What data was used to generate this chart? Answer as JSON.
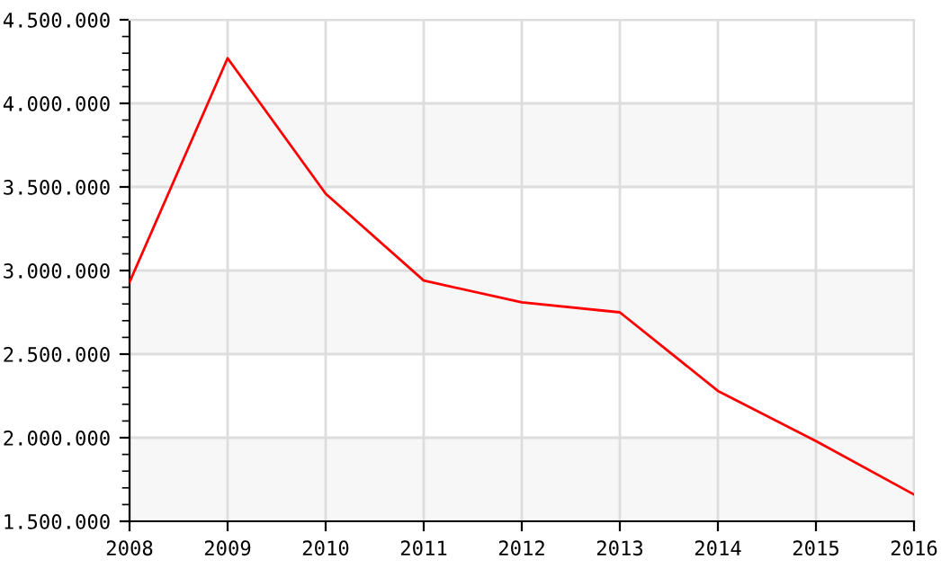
{
  "chart_data": {
    "type": "line",
    "x": [
      2008,
      2009,
      2010,
      2011,
      2012,
      2013,
      2014,
      2015,
      2016
    ],
    "series": [
      {
        "color": "#ff0000",
        "values": [
          2930000,
          4270000,
          3460000,
          2940000,
          2810000,
          2750000,
          2280000,
          1980000,
          1660000
        ]
      }
    ],
    "xlim": [
      2008,
      2016
    ],
    "xticks": [
      2008,
      2009,
      2010,
      2011,
      2012,
      2013,
      2014,
      2015,
      2016
    ],
    "ylim": [
      1500000,
      4500000
    ],
    "yticks": [
      {
        "value": 1500000,
        "label": "1.500.000"
      },
      {
        "value": 2000000,
        "label": "2.000.000"
      },
      {
        "value": 2500000,
        "label": "2.500.000"
      },
      {
        "value": 3000000,
        "label": "3.000.000"
      },
      {
        "value": 3500000,
        "label": "3.500.000"
      },
      {
        "value": 4000000,
        "label": "4.000.000"
      },
      {
        "value": 4500000,
        "label": "4.500.000"
      }
    ],
    "bands": [
      {
        "axis": "y",
        "from": 1500000,
        "to": 2000000,
        "color": "#f7f7f7"
      },
      {
        "axis": "y",
        "from": 2500000,
        "to": 3000000,
        "color": "#f7f7f7"
      },
      {
        "axis": "y",
        "from": 3500000,
        "to": 4000000,
        "color": "#f7f7f7"
      }
    ],
    "grid": true,
    "marker": "none",
    "line_style": "solid"
  }
}
